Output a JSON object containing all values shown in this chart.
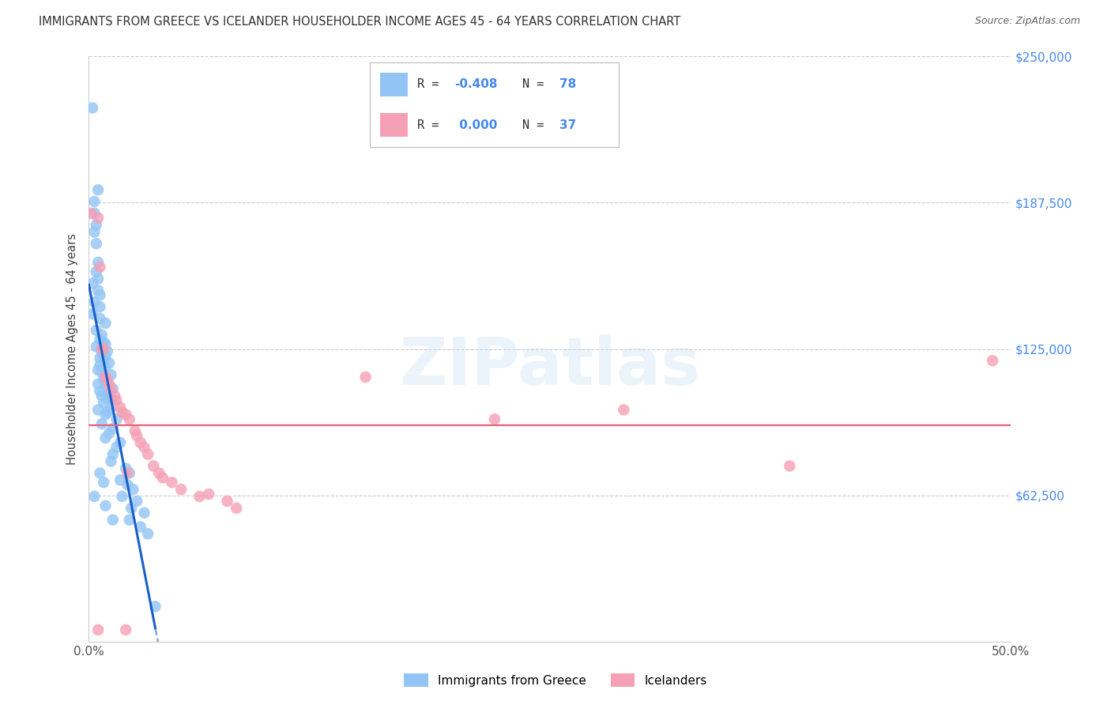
{
  "title": "IMMIGRANTS FROM GREECE VS ICELANDER HOUSEHOLDER INCOME AGES 45 - 64 YEARS CORRELATION CHART",
  "source": "Source: ZipAtlas.com",
  "ylabel": "Householder Income Ages 45 - 64 years",
  "xlim_min": 0.0,
  "xlim_max": 0.5,
  "ylim_min": 0,
  "ylim_max": 250000,
  "yticks": [
    0,
    62500,
    125000,
    187500,
    250000
  ],
  "ytick_labels": [
    "",
    "$62,500",
    "$125,000",
    "$187,500",
    "$250,000"
  ],
  "xtick_positions": [
    0.0,
    0.05,
    0.1,
    0.15,
    0.2,
    0.25,
    0.3,
    0.35,
    0.4,
    0.45,
    0.5
  ],
  "xtick_labels": [
    "0.0%",
    "",
    "",
    "",
    "",
    "",
    "",
    "",
    "",
    "",
    "50.0%"
  ],
  "color_greece": "#92c5f5",
  "color_iceland": "#f5a0b5",
  "color_line_greece": "#1a5fc8",
  "color_line_iceland": "#e8607a",
  "color_ytick_right": "#4488ee",
  "watermark_text": "ZIPatlas",
  "watermark_color": "#c8dff5",
  "bottom_legend1": "Immigrants from Greece",
  "bottom_legend2": "Icelanders",
  "greece_scatter_x": [
    0.002,
    0.005,
    0.003,
    0.003,
    0.004,
    0.003,
    0.004,
    0.005,
    0.004,
    0.005,
    0.002,
    0.005,
    0.006,
    0.003,
    0.006,
    0.002,
    0.006,
    0.009,
    0.004,
    0.007,
    0.006,
    0.008,
    0.009,
    0.004,
    0.007,
    0.01,
    0.007,
    0.009,
    0.006,
    0.008,
    0.011,
    0.006,
    0.009,
    0.005,
    0.007,
    0.012,
    0.008,
    0.01,
    0.005,
    0.009,
    0.013,
    0.006,
    0.011,
    0.007,
    0.01,
    0.013,
    0.008,
    0.012,
    0.005,
    0.01,
    0.009,
    0.015,
    0.007,
    0.013,
    0.011,
    0.009,
    0.017,
    0.015,
    0.013,
    0.012,
    0.02,
    0.022,
    0.017,
    0.021,
    0.024,
    0.018,
    0.026,
    0.023,
    0.03,
    0.022,
    0.028,
    0.032,
    0.036,
    0.003,
    0.006,
    0.008,
    0.009,
    0.013
  ],
  "greece_scatter_y": [
    228000,
    193000,
    188000,
    183000,
    178000,
    175000,
    170000,
    162000,
    158000,
    155000,
    153000,
    150000,
    148000,
    145000,
    143000,
    140000,
    138000,
    136000,
    133000,
    131000,
    129000,
    128000,
    127000,
    126000,
    125000,
    124000,
    123000,
    122000,
    121000,
    120000,
    119000,
    118000,
    117000,
    116000,
    115000,
    114000,
    112000,
    111000,
    110000,
    109000,
    108000,
    107000,
    106000,
    105000,
    104000,
    103000,
    102000,
    100000,
    99000,
    98000,
    97000,
    95000,
    93000,
    91000,
    89000,
    87000,
    85000,
    83000,
    80000,
    77000,
    74000,
    72000,
    69000,
    67000,
    65000,
    62000,
    60000,
    57000,
    55000,
    52000,
    49000,
    46000,
    15000,
    62000,
    72000,
    68000,
    58000,
    52000
  ],
  "iceland_scatter_x": [
    0.001,
    0.005,
    0.006,
    0.007,
    0.008,
    0.009,
    0.01,
    0.011,
    0.012,
    0.014,
    0.015,
    0.017,
    0.018,
    0.02,
    0.022,
    0.025,
    0.026,
    0.028,
    0.03,
    0.032,
    0.035,
    0.038,
    0.04,
    0.045,
    0.05,
    0.06,
    0.065,
    0.075,
    0.08,
    0.15,
    0.22,
    0.29,
    0.38,
    0.49,
    0.005,
    0.02,
    0.021
  ],
  "iceland_scatter_y": [
    183000,
    181000,
    160000,
    125000,
    125000,
    113000,
    112000,
    110000,
    108000,
    105000,
    103000,
    100000,
    98000,
    97000,
    95000,
    90000,
    88000,
    85000,
    83000,
    80000,
    75000,
    72000,
    70000,
    68000,
    65000,
    62000,
    63000,
    60000,
    57000,
    113000,
    95000,
    99000,
    75000,
    120000,
    5000,
    5000,
    72000
  ],
  "greece_line_x0": 0.0,
  "greece_line_x1": 0.036,
  "greece_line_x_dash_end": 0.052,
  "iceland_line_y": 100000
}
